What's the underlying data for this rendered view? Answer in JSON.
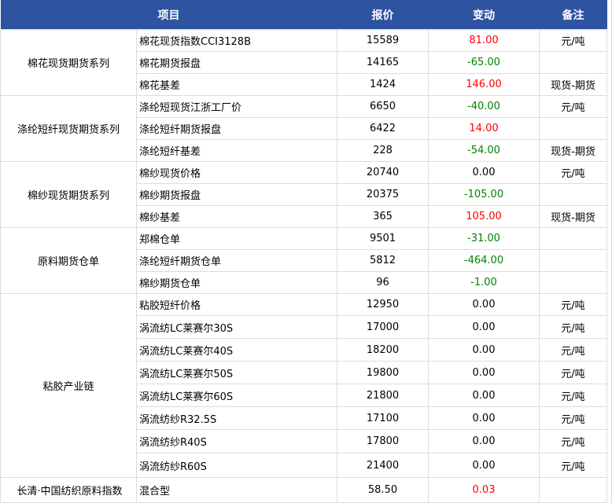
{
  "header": {
    "item": "项目",
    "price": "报价",
    "change": "变动",
    "note": "备注"
  },
  "colors": {
    "header_bg": "#2e54a1",
    "up": "#ff0000",
    "down": "#008000"
  },
  "groups": [
    {
      "name": "棉花现货期货系列",
      "rows": [
        {
          "item": "棉花现货指数CCI3128B",
          "price": "15589",
          "change": "81.00",
          "dir": "up",
          "note": "元/吨"
        },
        {
          "item": "棉花期货报盘",
          "price": "14165",
          "change": "-65.00",
          "dir": "down",
          "note": ""
        },
        {
          "item": "棉花基差",
          "price": "1424",
          "change": "146.00",
          "dir": "up",
          "note": "现货-期货"
        }
      ]
    },
    {
      "name": "涤纶短纤现货期货系列",
      "rows": [
        {
          "item": "涤纶短现货江浙工厂价",
          "price": "6650",
          "change": "-40.00",
          "dir": "down",
          "note": "元/吨"
        },
        {
          "item": "涤纶短纤期货报盘",
          "price": "6422",
          "change": "14.00",
          "dir": "up",
          "note": ""
        },
        {
          "item": "涤纶短纤基差",
          "price": "228",
          "change": "-54.00",
          "dir": "down",
          "note": "现货-期货"
        }
      ]
    },
    {
      "name": "棉纱现货期货系列",
      "rows": [
        {
          "item": "棉纱现货价格",
          "price": "20740",
          "change": "0.00",
          "dir": "flat",
          "note": "元/吨"
        },
        {
          "item": "棉纱期货报盘",
          "price": "20375",
          "change": "-105.00",
          "dir": "down",
          "note": ""
        },
        {
          "item": "棉纱基差",
          "price": "365",
          "change": "105.00",
          "dir": "up",
          "note": "现货-期货"
        }
      ]
    },
    {
      "name": "原料期货仓单",
      "rows": [
        {
          "item": "郑棉仓单",
          "price": "9501",
          "change": "-31.00",
          "dir": "down",
          "note": ""
        },
        {
          "item": "涤纶短纤期货仓单",
          "price": "5812",
          "change": "-464.00",
          "dir": "down",
          "note": ""
        },
        {
          "item": "棉纱期货仓单",
          "price": "96",
          "change": "-1.00",
          "dir": "down",
          "note": ""
        }
      ]
    },
    {
      "name": "粘胶产业链",
      "rows": [
        {
          "item": "粘胶短纤价格",
          "price": "12950",
          "change": "0.00",
          "dir": "flat",
          "note": "元/吨"
        },
        {
          "item": "涡流纺LC莱赛尔30S",
          "price": "17000",
          "change": "0.00",
          "dir": "flat",
          "note": "元/吨"
        },
        {
          "item": "涡流纺LC莱赛尔40S",
          "price": "18200",
          "change": "0.00",
          "dir": "flat",
          "note": "元/吨"
        },
        {
          "item": "涡流纺LC莱赛尔50S",
          "price": "19800",
          "change": "0.00",
          "dir": "flat",
          "note": "元/吨"
        },
        {
          "item": "涡流纺LC莱赛尔60S",
          "price": "21800",
          "change": "0.00",
          "dir": "flat",
          "note": "元/吨"
        },
        {
          "item": "涡流纺纱R32.5S",
          "price": "17100",
          "change": "0.00",
          "dir": "flat",
          "note": "元/吨"
        },
        {
          "item": "涡流纺纱R40S",
          "price": "17800",
          "change": "0.00",
          "dir": "flat",
          "note": "元/吨"
        },
        {
          "item": "涡流纺纱R60S",
          "price": "21400",
          "change": "0.00",
          "dir": "flat",
          "note": "元/吨"
        }
      ]
    },
    {
      "name": "长清·中国纺织原料指数",
      "rows": [
        {
          "item": "混合型",
          "price": "58.50",
          "change": "0.03",
          "dir": "up",
          "note": ""
        }
      ]
    }
  ]
}
